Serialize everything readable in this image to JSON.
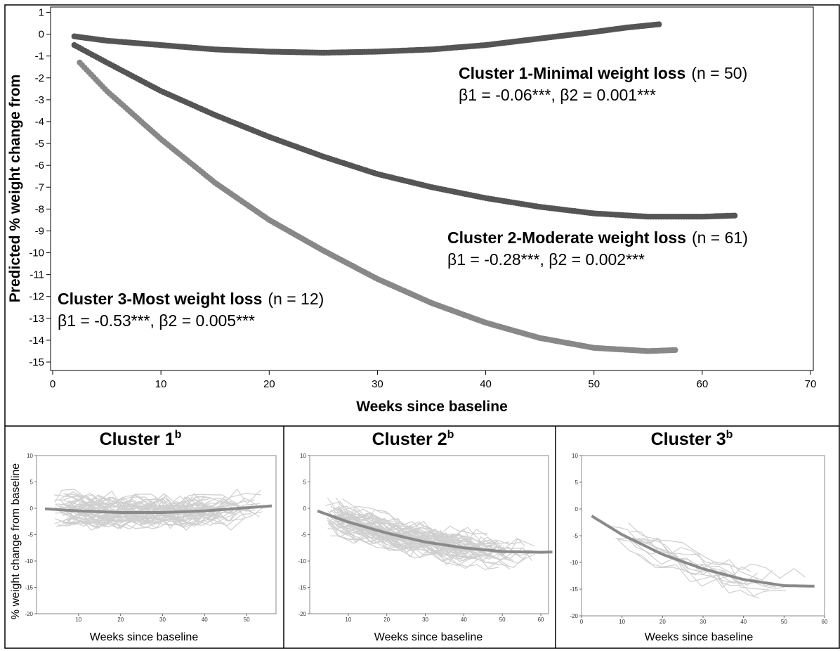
{
  "chart_data": [
    {
      "type": "scatter",
      "xlabel": "Weeks since baseline",
      "ylabel": "Predicted % weight change from",
      "xlim": [
        0,
        70
      ],
      "ylim": [
        -15,
        1
      ],
      "x_ticks": [
        "0",
        "10",
        "20",
        "30",
        "40",
        "50",
        "60",
        "70"
      ],
      "y_ticks": [
        "1",
        "0",
        "-1",
        "-2",
        "-3",
        "-4",
        "-5",
        "-6",
        "-7",
        "-8",
        "-9",
        "-10",
        "-11",
        "-12",
        "-13",
        "-14",
        "-15"
      ],
      "grid": false,
      "series": [
        {
          "name": "Cluster 1-Minimal weight loss",
          "n_text": "(n = 50)",
          "stats": "β1 = -0.06***, β2 = 0.001***",
          "color": "#555555",
          "x": [
            2,
            5,
            10,
            15,
            20,
            25,
            30,
            35,
            40,
            45,
            50,
            53,
            56
          ],
          "y": [
            -0.1,
            -0.3,
            -0.5,
            -0.7,
            -0.8,
            -0.85,
            -0.8,
            -0.7,
            -0.5,
            -0.2,
            0.1,
            0.3,
            0.45
          ]
        },
        {
          "name": "Cluster 2-Moderate weight loss",
          "n_text": "(n = 61)",
          "stats": "β1 = -0.28***, β2 = 0.002***",
          "color": "#555555",
          "x": [
            2,
            5,
            10,
            15,
            20,
            25,
            30,
            35,
            40,
            45,
            50,
            55,
            60,
            63
          ],
          "y": [
            -0.5,
            -1.3,
            -2.6,
            -3.7,
            -4.7,
            -5.6,
            -6.4,
            -7.0,
            -7.5,
            -7.9,
            -8.2,
            -8.35,
            -8.35,
            -8.3
          ]
        },
        {
          "name": "Cluster 3-Most weight loss",
          "n_text": "(n = 12)",
          "stats": "β1 = -0.53***, β2 = 0.005***",
          "color": "#888888",
          "x": [
            2.5,
            5,
            10,
            15,
            20,
            25,
            30,
            35,
            40,
            45,
            50,
            55,
            57.5
          ],
          "y": [
            -1.3,
            -2.6,
            -4.8,
            -6.8,
            -8.5,
            -9.9,
            -11.2,
            -12.3,
            -13.2,
            -13.9,
            -14.35,
            -14.5,
            -14.45
          ]
        }
      ]
    },
    {
      "type": "line",
      "title": "Cluster 1",
      "title_sup": "b",
      "xlabel": "Weeks since baseline",
      "ylabel": "% weight change from baseline",
      "xlim": [
        0,
        57
      ],
      "ylim": [
        -20,
        10
      ],
      "x_ticks": [
        "10",
        "20",
        "30",
        "40",
        "50"
      ],
      "y_ticks": [
        "10",
        "5",
        "0",
        "-5",
        "-10",
        "-15",
        "-20"
      ],
      "mean_curve": {
        "x": [
          2,
          10,
          20,
          30,
          40,
          50,
          56
        ],
        "y": [
          -0.1,
          -0.5,
          -0.8,
          -0.8,
          -0.5,
          0.1,
          0.45
        ]
      }
    },
    {
      "type": "line",
      "title": "Cluster 2",
      "title_sup": "b",
      "xlabel": "Weeks since baseline",
      "xlim": [
        0,
        62
      ],
      "ylim": [
        -20,
        10
      ],
      "x_ticks": [
        "10",
        "20",
        "30",
        "40",
        "50",
        "60"
      ],
      "y_ticks": [
        "10",
        "5",
        "0",
        "-5",
        "-10",
        "-15",
        "-20"
      ],
      "mean_curve": {
        "x": [
          2,
          10,
          20,
          30,
          40,
          50,
          60,
          63
        ],
        "y": [
          -0.5,
          -2.6,
          -4.7,
          -6.4,
          -7.5,
          -8.2,
          -8.35,
          -8.3
        ]
      }
    },
    {
      "type": "line",
      "title": "Cluster 3",
      "title_sup": "b",
      "xlabel": "Weeks since baseline",
      "xlim": [
        0,
        60
      ],
      "ylim": [
        -20,
        10
      ],
      "x_ticks": [
        "0",
        "10",
        "20",
        "30",
        "40",
        "50",
        "60"
      ],
      "y_ticks": [
        "10",
        "5",
        "0",
        "-5",
        "-10",
        "-15",
        "-20"
      ],
      "mean_curve": {
        "x": [
          2.5,
          10,
          20,
          30,
          40,
          50,
          57.5
        ],
        "y": [
          -1.3,
          -4.8,
          -8.5,
          -11.2,
          -13.2,
          -14.35,
          -14.45
        ]
      }
    }
  ]
}
